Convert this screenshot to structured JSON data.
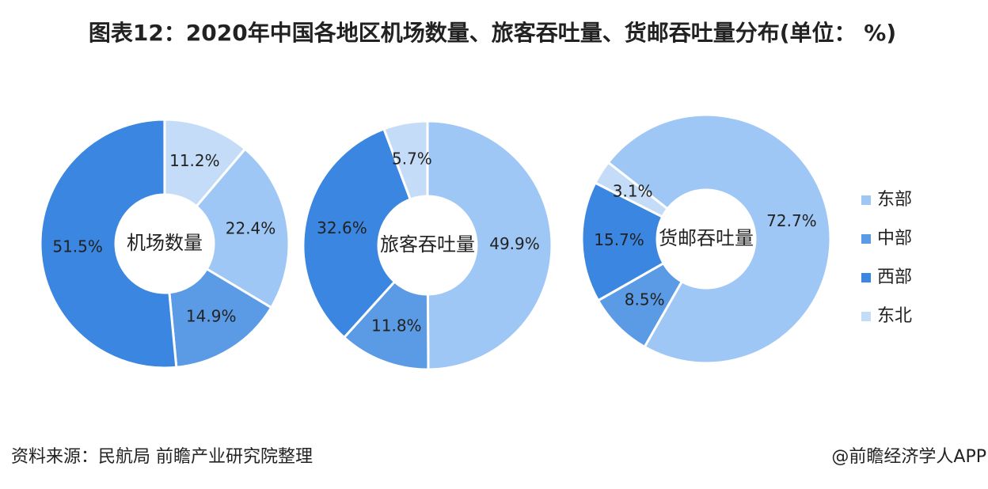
{
  "title": "图表12：2020年中国各地区机场数量、旅客吞吐量、货邮吞吐量分布(单位： %)",
  "source": "资料来源：民航局 前瞻产业研究院整理",
  "credit": "@前瞻经济学人APP",
  "chart_data": [
    {
      "type": "pie",
      "center_label": "机场数量",
      "categories": [
        "东部",
        "中部",
        "西部",
        "东北"
      ],
      "values": [
        22.4,
        14.9,
        51.5,
        11.2
      ],
      "value_labels": [
        "22.4%",
        "14.9%",
        "51.5%",
        "11.2%"
      ],
      "colors": [
        "#9fc7f5",
        "#5b9be6",
        "#3a86e0",
        "#c4dcf7"
      ]
    },
    {
      "type": "pie",
      "center_label": "旅客吞吐量",
      "categories": [
        "东部",
        "中部",
        "西部",
        "东北"
      ],
      "values": [
        49.9,
        11.8,
        32.6,
        5.7
      ],
      "value_labels": [
        "49.9%",
        "11.8%",
        "32.6%",
        "5.7%"
      ],
      "colors": [
        "#9fc7f5",
        "#5b9be6",
        "#3a86e0",
        "#c4dcf7"
      ]
    },
    {
      "type": "pie",
      "center_label": "货邮吞吐量",
      "categories": [
        "东部",
        "中部",
        "西部",
        "东北"
      ],
      "values": [
        72.7,
        8.5,
        15.7,
        3.1
      ],
      "value_labels": [
        "72.7%",
        "8.5%",
        "15.7%",
        "3.1%"
      ],
      "colors": [
        "#9fc7f5",
        "#5b9be6",
        "#3a86e0",
        "#c4dcf7"
      ]
    }
  ]
}
